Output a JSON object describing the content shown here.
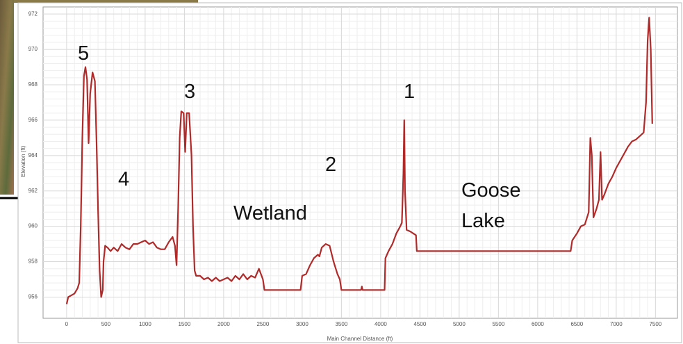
{
  "chart_data": {
    "type": "line",
    "x_label": "Main Channel Distance (ft)",
    "y_label": "Elevation (ft)",
    "xlim": [
      -300,
      7780
    ],
    "ylim": [
      954.8,
      972.4
    ],
    "xticks": [
      0,
      500,
      1000,
      1500,
      2000,
      2500,
      3000,
      3500,
      4000,
      4500,
      5000,
      5500,
      6000,
      6500,
      7000,
      7500
    ],
    "yticks": [
      956,
      958,
      960,
      962,
      964,
      966,
      968,
      970,
      972
    ],
    "grid": true,
    "annotations": [
      "5",
      "4",
      "3",
      "2",
      "1",
      "Wetland",
      "Goose Lake"
    ],
    "series": [
      {
        "color": "#b02a2a",
        "x": [
          0,
          20,
          60,
          100,
          140,
          160,
          180,
          200,
          220,
          240,
          260,
          280,
          300,
          330,
          360,
          380,
          400,
          420,
          440,
          460,
          470,
          490,
          520,
          560,
          600,
          650,
          700,
          750,
          800,
          850,
          900,
          950,
          1000,
          1050,
          1100,
          1150,
          1200,
          1250,
          1300,
          1350,
          1380,
          1400,
          1420,
          1440,
          1460,
          1490,
          1510,
          1530,
          1560,
          1590,
          1610,
          1630,
          1650,
          1700,
          1750,
          1800,
          1850,
          1900,
          1950,
          2000,
          2050,
          2100,
          2150,
          2200,
          2250,
          2300,
          2350,
          2400,
          2450,
          2500,
          2520,
          2980,
          3000,
          3050,
          3100,
          3150,
          3200,
          3220,
          3250,
          3300,
          3350,
          3400,
          3450,
          3480,
          3500,
          3750,
          3760,
          3770,
          4050,
          4060,
          4100,
          4150,
          4200,
          4250,
          4270,
          4290,
          4300,
          4310,
          4330,
          4380,
          4450,
          4460,
          6420,
          6440,
          6500,
          6550,
          6600,
          6650,
          6670,
          6690,
          6710,
          6750,
          6780,
          6800,
          6820,
          6850,
          6900,
          6950,
          7000,
          7050,
          7100,
          7150,
          7200,
          7250,
          7300,
          7350,
          7380,
          7400,
          7420,
          7440,
          7460
        ],
        "values": [
          955.6,
          956.0,
          956.1,
          956.2,
          956.5,
          956.8,
          960,
          965,
          968.5,
          969.0,
          968.3,
          964.7,
          967.5,
          968.7,
          968.2,
          965,
          961,
          957.5,
          956.0,
          956.4,
          958.0,
          958.9,
          958.8,
          958.6,
          958.8,
          958.6,
          959.0,
          958.8,
          958.7,
          959.0,
          959.0,
          959.1,
          959.2,
          959.0,
          959.1,
          958.8,
          958.7,
          958.7,
          959.1,
          959.4,
          958.9,
          957.8,
          961,
          965,
          966.5,
          966.4,
          964.2,
          966.4,
          966.4,
          964,
          960,
          957.5,
          957.2,
          957.2,
          957.0,
          957.1,
          956.9,
          957.1,
          956.9,
          957.0,
          957.1,
          956.9,
          957.2,
          957.0,
          957.3,
          957.0,
          957.2,
          957.1,
          957.6,
          957.0,
          956.4,
          956.4,
          957.2,
          957.3,
          957.8,
          958.2,
          958.4,
          958.3,
          958.8,
          959.0,
          958.9,
          958.0,
          957.3,
          957.0,
          956.4,
          956.4,
          956.6,
          956.4,
          956.4,
          958.2,
          958.6,
          959.0,
          959.6,
          960.0,
          960.2,
          963,
          966.0,
          962,
          959.8,
          959.7,
          959.5,
          958.6,
          958.6,
          959.2,
          959.6,
          960.0,
          960.1,
          960.8,
          965.0,
          964,
          960.5,
          961,
          961.5,
          964.2,
          961.5,
          961.8,
          962.4,
          962.8,
          963.3,
          963.7,
          964.1,
          964.5,
          964.8,
          964.9,
          965.1,
          965.3,
          967,
          970.5,
          971.8,
          970,
          965.8
        ]
      }
    ]
  }
}
